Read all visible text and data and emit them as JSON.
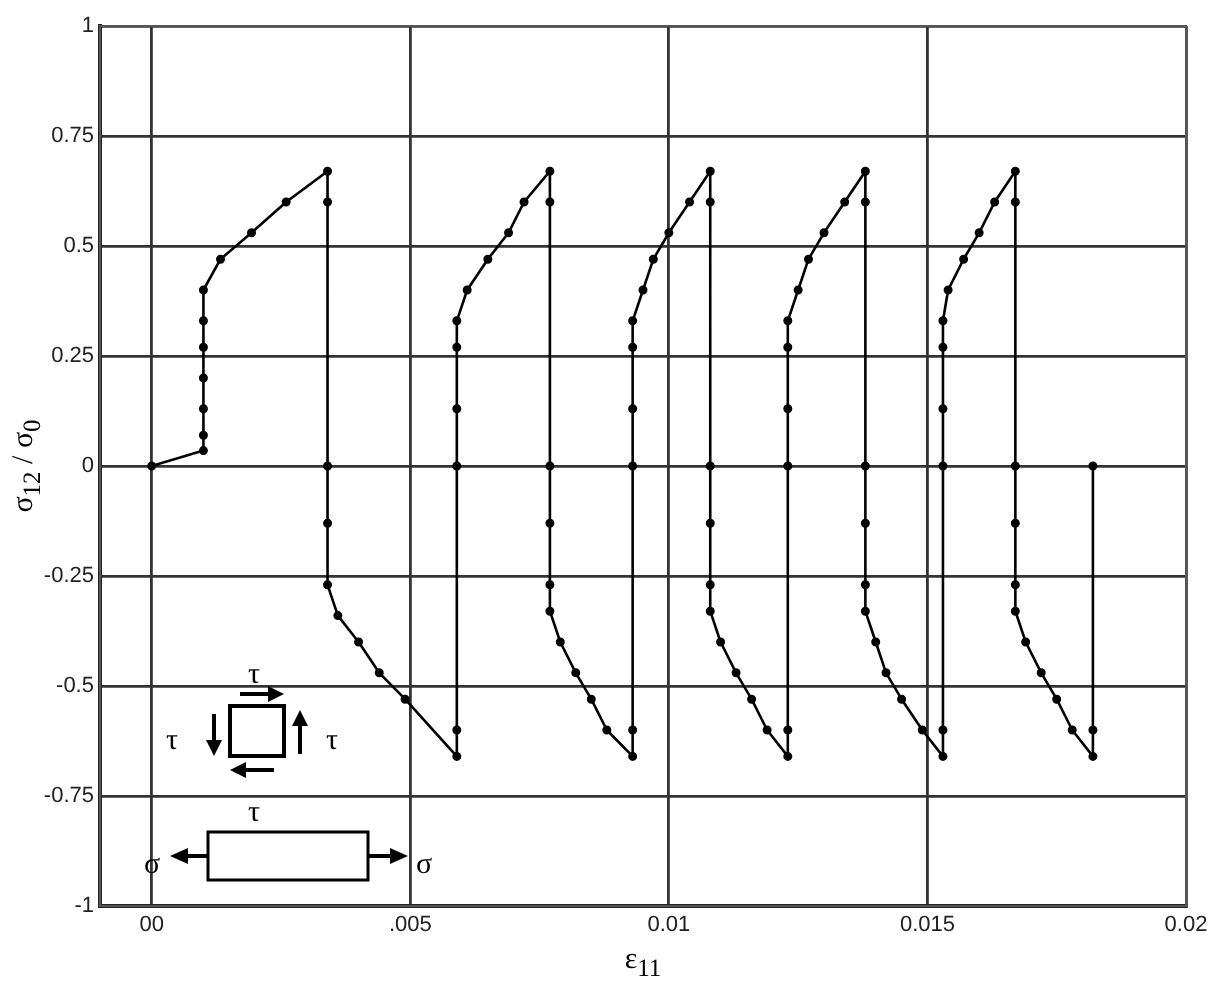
{
  "chart_data": {
    "type": "line",
    "xlabel": "ε$_{11}$",
    "ylabel": "σ$_{12}$ / σ$_{0}$",
    "xlim": [
      -0.001,
      0.02
    ],
    "xticks": [
      {
        "value": 0,
        "label": "00"
      },
      {
        "value": 0.005,
        "label": ".005"
      },
      0.01,
      0.015,
      0.02
    ],
    "ylim": [
      -1,
      1
    ],
    "yticks": [
      -1,
      -0.75,
      -0.5,
      -0.25,
      0,
      0.25,
      0.5,
      0.75,
      1
    ],
    "grid": true,
    "marker": "circle",
    "line_style": "solid",
    "annotations": [
      "τ",
      "τ",
      "τ",
      "τ",
      "σ",
      "σ"
    ],
    "series": [
      {
        "color": "#000000",
        "x": [
          0,
          0.001,
          0.001,
          0.001,
          0.001,
          0.001,
          0.001,
          0.001,
          0.00133,
          0.00193,
          0.0026,
          0.0034,
          0.0034,
          0.0034,
          0.0034,
          0.0034,
          0.0036,
          0.004,
          0.0044,
          0.0049,
          0.0059,
          0.0059,
          0.0059,
          0.0059,
          0.0059,
          0.0059,
          0.0061,
          0.0065,
          0.0069,
          0.0072,
          0.0077,
          0.0077,
          0.0077,
          0.0077,
          0.0077,
          0.0077,
          0.0079,
          0.0082,
          0.0085,
          0.0088,
          0.0093,
          0.0093,
          0.0093,
          0.0093,
          0.0093,
          0.0093,
          0.0095,
          0.0097,
          0.01,
          0.0104,
          0.0108,
          0.0108,
          0.0108,
          0.0108,
          0.0108,
          0.0108,
          0.011,
          0.0113,
          0.0116,
          0.0119,
          0.0123,
          0.0123,
          0.0123,
          0.0123,
          0.0123,
          0.0123,
          0.0125,
          0.0127,
          0.013,
          0.0134,
          0.0138,
          0.0138,
          0.0138,
          0.0138,
          0.0138,
          0.0138,
          0.014,
          0.0142,
          0.0145,
          0.0149,
          0.0153,
          0.0153,
          0.0153,
          0.0153,
          0.0153,
          0.0153,
          0.0154,
          0.0157,
          0.016,
          0.0163,
          0.0167,
          0.0167,
          0.0167,
          0.0167,
          0.0167,
          0.0167,
          0.0169,
          0.0172,
          0.0175,
          0.0178,
          0.0182,
          0.0182,
          0.0182
        ],
        "values": [
          0,
          0.035,
          0.07,
          0.13,
          0.2,
          0.27,
          0.33,
          0.4,
          0.47,
          0.53,
          0.6,
          0.67,
          0.6,
          0,
          -0.13,
          -0.27,
          -0.34,
          -0.4,
          -0.47,
          -0.53,
          -0.66,
          -0.6,
          0,
          0.13,
          0.27,
          0.33,
          0.4,
          0.47,
          0.53,
          0.6,
          0.67,
          0.6,
          0,
          -0.13,
          -0.27,
          -0.33,
          -0.4,
          -0.47,
          -0.53,
          -0.6,
          -0.66,
          -0.6,
          0,
          0.13,
          0.27,
          0.33,
          0.4,
          0.47,
          0.53,
          0.6,
          0.67,
          0.6,
          0,
          -0.13,
          -0.27,
          -0.33,
          -0.4,
          -0.47,
          -0.53,
          -0.6,
          -0.66,
          -0.6,
          0,
          0.13,
          0.27,
          0.33,
          0.4,
          0.47,
          0.53,
          0.6,
          0.67,
          0.6,
          0,
          -0.13,
          -0.27,
          -0.33,
          -0.4,
          -0.47,
          -0.53,
          -0.6,
          -0.66,
          -0.6,
          0,
          0.13,
          0.27,
          0.33,
          0.4,
          0.47,
          0.53,
          0.6,
          0.67,
          0.6,
          0,
          -0.13,
          -0.27,
          -0.33,
          -0.4,
          -0.47,
          -0.53,
          -0.6,
          -0.66,
          -0.6,
          0
        ]
      }
    ]
  }
}
